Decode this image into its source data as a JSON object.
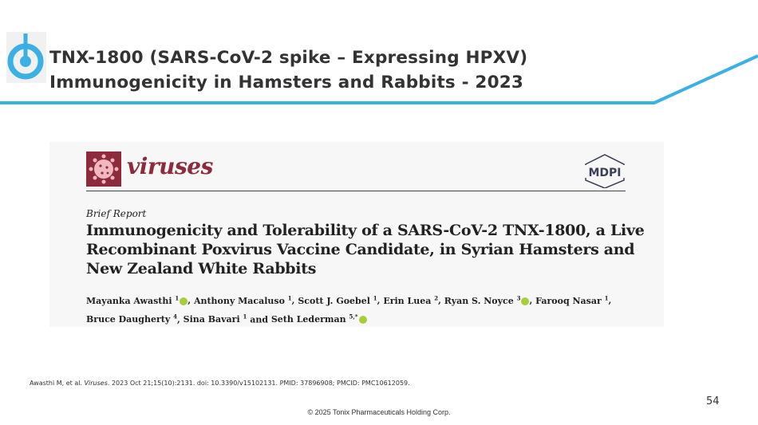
{
  "slide": {
    "title_line1": "TNX-1800 (SARS-CoV-2 spike – Expressing HPXV)",
    "title_line2": "Immunogenicity in Hamsters and Rabbits - 2023",
    "accent_color": "#3bb0e5",
    "page_number": "54",
    "copyright": "© 2025 Tonix Pharmaceuticals Holding Corp."
  },
  "paper": {
    "journal": "viruses",
    "publisher_logo": "MDPI",
    "journal_color": "#8d2a3c",
    "article_type": "Brief Report",
    "title": "Immunogenicity and Tolerability of a SARS-CoV-2 TNX-1800, a Live Recombinant Poxvirus Vaccine Candidate, in Syrian Hamsters and New Zealand White Rabbits",
    "authors": [
      {
        "name": "Mayanka Awasthi",
        "aff": "1",
        "orcid": true
      },
      {
        "name": "Anthony Macaluso",
        "aff": "1",
        "orcid": false
      },
      {
        "name": "Scott J. Goebel",
        "aff": "1",
        "orcid": false
      },
      {
        "name": "Erin Luea",
        "aff": "2",
        "orcid": false
      },
      {
        "name": "Ryan S. Noyce",
        "aff": "3",
        "orcid": true
      },
      {
        "name": "Farooq Nasar",
        "aff": "1",
        "orcid": false
      },
      {
        "name": "Bruce Daugherty",
        "aff": "4",
        "orcid": false
      },
      {
        "name": "Sina Bavari",
        "aff": "1",
        "orcid": false
      },
      {
        "name": "Seth Lederman",
        "aff": "5,*",
        "orcid": true
      }
    ]
  },
  "citation": {
    "prefix": "Awasthi M, et al. ",
    "journal": "Viruses",
    "rest": ". 2023 Oct 21;15(10):2131. doi: 10.3390/v15102131. PMID: 37896908; PMCID: PMC10612059."
  }
}
